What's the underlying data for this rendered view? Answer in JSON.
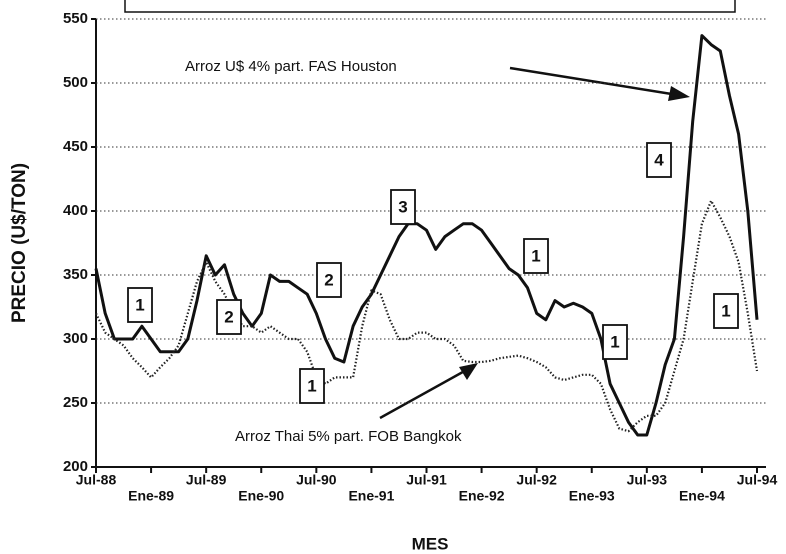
{
  "chart_data": {
    "type": "line",
    "x_label": "MES",
    "y_label": "PRECIO (U$/TON)",
    "categories": [
      "Jul-88",
      null,
      null,
      null,
      null,
      null,
      "Ene-89",
      null,
      null,
      null,
      null,
      null,
      "Jul-89",
      null,
      null,
      null,
      null,
      null,
      "Ene-90",
      null,
      null,
      null,
      null,
      null,
      "Jul-90",
      null,
      null,
      null,
      null,
      null,
      "Ene-91",
      null,
      null,
      null,
      null,
      null,
      "Jul-91",
      null,
      null,
      null,
      null,
      null,
      "Ene-92",
      null,
      null,
      null,
      null,
      null,
      "Jul-92",
      null,
      null,
      null,
      null,
      null,
      "Ene-93",
      null,
      null,
      null,
      null,
      null,
      "Jul-93",
      null,
      null,
      null,
      null,
      null,
      "Ene-94",
      null,
      null,
      null,
      null,
      null,
      "Jul-94"
    ],
    "series": [
      {
        "name": "Arroz U$ 4% part. FAS Houston",
        "color": "#111111",
        "dash": "solid",
        "values": [
          355,
          320,
          300,
          300,
          300,
          310,
          300,
          290,
          290,
          290,
          300,
          330,
          365,
          350,
          358,
          335,
          320,
          310,
          320,
          350,
          345,
          345,
          340,
          335,
          320,
          300,
          285,
          282,
          310,
          325,
          335,
          350,
          365,
          380,
          390,
          390,
          385,
          370,
          380,
          385,
          390,
          390,
          385,
          375,
          365,
          355,
          350,
          340,
          320,
          315,
          330,
          325,
          328,
          325,
          320,
          300,
          265,
          250,
          235,
          225,
          225,
          250,
          280,
          300,
          380,
          470,
          537,
          530,
          525,
          490,
          460,
          400,
          315
        ]
      },
      {
        "name": "Arroz Thai 5% part. FOB Bangkok",
        "color": "#222222",
        "dash": "dotted",
        "values": [
          320,
          305,
          300,
          295,
          285,
          278,
          270,
          278,
          285,
          295,
          320,
          345,
          360,
          345,
          335,
          320,
          310,
          310,
          305,
          310,
          305,
          300,
          300,
          290,
          270,
          265,
          270,
          270,
          270,
          310,
          338,
          335,
          315,
          300,
          300,
          305,
          305,
          300,
          300,
          295,
          283,
          282,
          282,
          283,
          285,
          286,
          287,
          285,
          282,
          278,
          270,
          268,
          270,
          272,
          272,
          265,
          245,
          230,
          228,
          235,
          240,
          240,
          250,
          275,
          300,
          345,
          390,
          408,
          395,
          380,
          360,
          320,
          275
        ]
      }
    ],
    "annotations": [
      "1",
      "2",
      "2",
      "1",
      "3",
      "1",
      "1",
      "4",
      "1"
    ],
    "ylim": [
      200,
      550
    ],
    "yticks": [
      200,
      250,
      300,
      350,
      400,
      450,
      500,
      550
    ],
    "grid": true
  }
}
